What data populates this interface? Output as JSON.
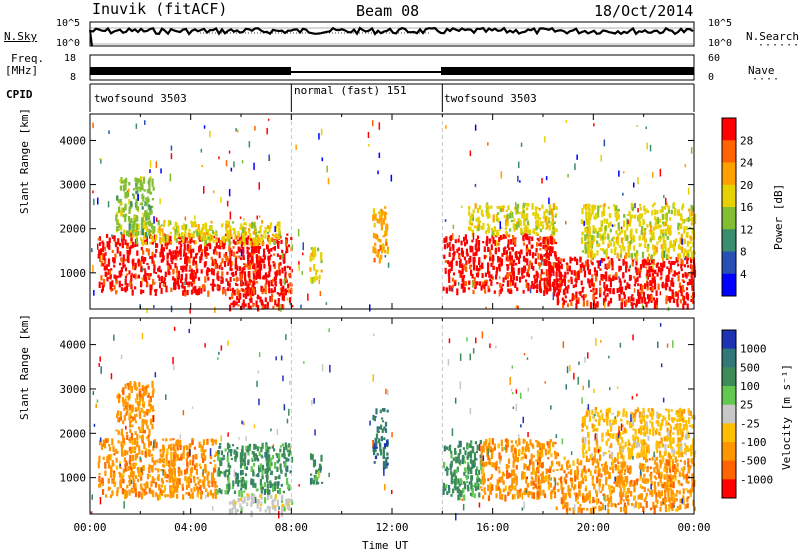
{
  "header": {
    "station": "Inuvik (fitACF)",
    "beam": "Beam 08",
    "date": "18/Oct/2014"
  },
  "top_panels": {
    "nsky_label": "N.Sky",
    "nsky_ticks": [
      "10^5",
      "10^0"
    ],
    "nsearch_label": "N.Search",
    "nsearch_ticks": [
      "10^5",
      "10^0"
    ],
    "freq_label_1": "Freq.",
    "freq_label_2": "[MHz]",
    "freq_ticks": [
      "18",
      "8"
    ],
    "nave_label": "Nave",
    "nave_ticks": [
      "60",
      "0"
    ],
    "cpid_label": "CPID",
    "cpid_segments": [
      {
        "label": "twofsound 3503",
        "start_h": 0,
        "end_h": 8
      },
      {
        "label": "normal (fast) 151",
        "start_h": 8,
        "end_h": 14
      },
      {
        "label": "twofsound 3503",
        "start_h": 14,
        "end_h": 24
      }
    ]
  },
  "chart_data": [
    {
      "type": "heatmap",
      "variable": "power",
      "ylabel": "Slant Range [km]",
      "xlim": [
        0,
        24
      ],
      "ylim": [
        180,
        4600
      ],
      "yticks": [
        1000,
        2000,
        3000,
        4000
      ],
      "colorbar": {
        "label": "Power [dB]",
        "ticks": [
          "28",
          "24",
          "20",
          "16",
          "12",
          "8",
          "4"
        ],
        "colors": [
          "#ff0000",
          "#ff6400",
          "#ffa000",
          "#e6d200",
          "#82be32",
          "#3c8c6e",
          "#2850b4",
          "#0000ff"
        ]
      },
      "regions": [
        {
          "t0": 0.3,
          "t1": 8.0,
          "r0": 600,
          "r1": 1900,
          "level": 28
        },
        {
          "t0": 1.5,
          "t1": 7.5,
          "r0": 1700,
          "r1": 2200,
          "level": 16
        },
        {
          "t0": 5.5,
          "t1": 8.0,
          "r0": 250,
          "r1": 650,
          "level": 28
        },
        {
          "t0": 1.0,
          "t1": 2.5,
          "r0": 1900,
          "r1": 3200,
          "level": 12
        },
        {
          "t0": 8.7,
          "t1": 9.2,
          "r0": 900,
          "r1": 1600,
          "level": 16
        },
        {
          "t0": 11.2,
          "t1": 11.8,
          "r0": 1300,
          "r1": 2600,
          "level": 20
        },
        {
          "t0": 14.0,
          "t1": 18.5,
          "r0": 600,
          "r1": 1900,
          "level": 28
        },
        {
          "t0": 15.0,
          "t1": 18.5,
          "r0": 1900,
          "r1": 2600,
          "level": 16
        },
        {
          "t0": 18.5,
          "t1": 24.0,
          "r0": 300,
          "r1": 1400,
          "level": 28
        },
        {
          "t0": 19.5,
          "t1": 24.0,
          "r0": 1400,
          "r1": 2600,
          "level": 16
        }
      ]
    },
    {
      "type": "heatmap",
      "variable": "velocity",
      "xlabel": "Time UT",
      "ylabel": "Slant Range [km]",
      "xlim": [
        0,
        24
      ],
      "ylim": [
        180,
        4600
      ],
      "xticks": [
        "00:00",
        "04:00",
        "08:00",
        "12:00",
        "16:00",
        "20:00",
        "00:00"
      ],
      "yticks": [
        1000,
        2000,
        3000,
        4000
      ],
      "colorbar": {
        "label": "Velocity [m s⁻¹]",
        "ticks": [
          "1000",
          "500",
          "100",
          "25",
          "-25",
          "-100",
          "-500",
          "-1000"
        ],
        "colors": [
          "#1e32b4",
          "#327878",
          "#3c8c5a",
          "#64c850",
          "#c8c8c8",
          "#ffbe00",
          "#ff9600",
          "#ff6400",
          "#ff0000"
        ]
      },
      "regions": [
        {
          "t0": 0.3,
          "t1": 5.0,
          "r0": 600,
          "r1": 1900,
          "level": -500
        },
        {
          "t0": 5.0,
          "t1": 8.0,
          "r0": 700,
          "r1": 1800,
          "level": 100
        },
        {
          "t0": 5.5,
          "t1": 8.0,
          "r0": 250,
          "r1": 650,
          "level": 0
        },
        {
          "t0": 1.0,
          "t1": 2.5,
          "r0": 1900,
          "r1": 3200,
          "level": -500
        },
        {
          "t0": 8.7,
          "t1": 9.2,
          "r0": 900,
          "r1": 1600,
          "level": 100
        },
        {
          "t0": 11.2,
          "t1": 11.8,
          "r0": 1300,
          "r1": 2600,
          "level": 500
        },
        {
          "t0": 14.0,
          "t1": 15.5,
          "r0": 600,
          "r1": 1900,
          "level": 100
        },
        {
          "t0": 15.5,
          "t1": 18.5,
          "r0": 600,
          "r1": 1900,
          "level": -500
        },
        {
          "t0": 18.5,
          "t1": 24.0,
          "r0": 300,
          "r1": 1500,
          "level": -500
        },
        {
          "t0": 19.5,
          "t1": 24.0,
          "r0": 1500,
          "r1": 2600,
          "level": -100
        }
      ]
    }
  ]
}
